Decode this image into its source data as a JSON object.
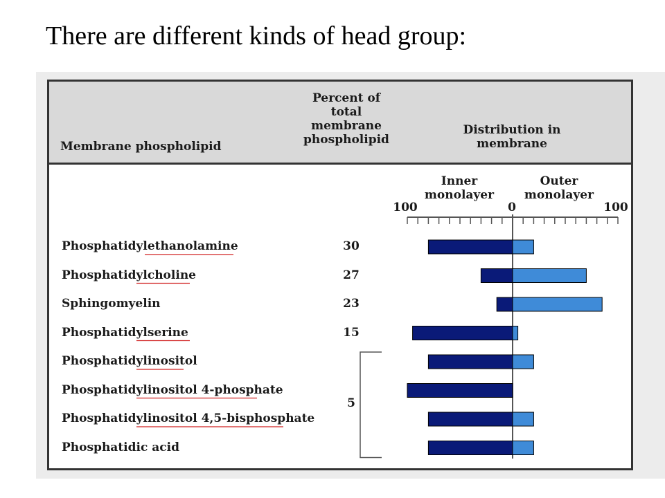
{
  "title": "There are different kinds of head group:",
  "chart_data": {
    "type": "bar",
    "header": {
      "col_lipid": "Membrane phospholipid",
      "col_percent": "Percent of\ntotal\nmembrane\nphospholipid",
      "col_distribution": "Distribution in\nmembrane"
    },
    "axis": {
      "inner_label": "Inner\nmonolayer",
      "outer_label": "Outer\nmonolayer",
      "tick_left": "100",
      "tick_zero": "0",
      "tick_right": "100",
      "range": [
        -100,
        100
      ]
    },
    "group_percent": "5",
    "rows": [
      {
        "name": "Phosphatidylethanolamine",
        "percent": "30",
        "inner": 80,
        "outer": 20
      },
      {
        "name": "Phosphatidylcholine",
        "percent": "27",
        "inner": 30,
        "outer": 70
      },
      {
        "name": "Sphingomyelin",
        "percent": "23",
        "inner": 15,
        "outer": 85
      },
      {
        "name": "Phosphatidylserine",
        "percent": "15",
        "inner": 95,
        "outer": 5
      },
      {
        "name": "Phosphatidylinositol",
        "percent": "",
        "inner": 80,
        "outer": 20
      },
      {
        "name": "Phosphatidylinositol 4-phosphate",
        "percent": "",
        "inner": 100,
        "outer": 0
      },
      {
        "name": "Phosphatidylinositol 4,5-bisphosphate",
        "percent": "",
        "inner": 80,
        "outer": 20
      },
      {
        "name": "Phosphatidic acid",
        "percent": "",
        "inner": 80,
        "outer": 20
      }
    ],
    "colors": {
      "inner": "#0a1a78",
      "outer": "#3f8bd8",
      "axis": "#555555",
      "underline": "#d02020"
    }
  }
}
